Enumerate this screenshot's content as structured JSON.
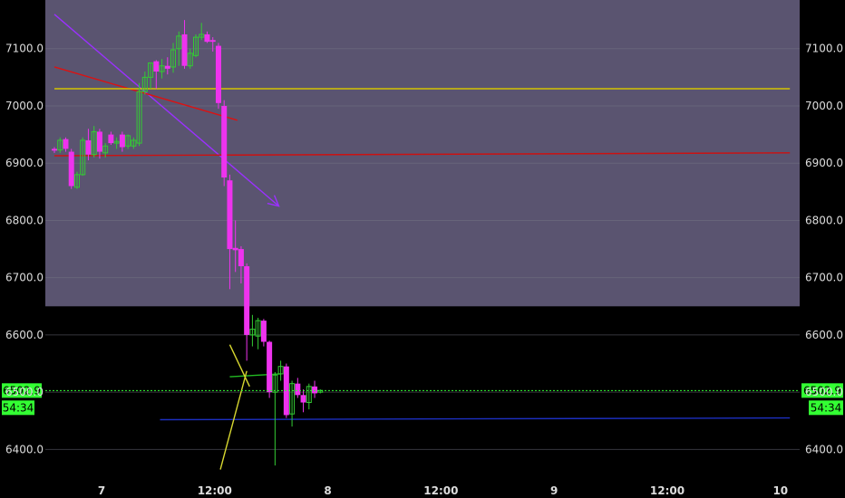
{
  "chart_data": {
    "type": "candlestick",
    "title": "",
    "xlabel": "",
    "ylabel": "",
    "ylim": [
      6350,
      7185
    ],
    "x_ticks": [
      {
        "label": "7",
        "t": 0
      },
      {
        "label": "12:00",
        "t": 12
      },
      {
        "label": "8",
        "t": 24
      },
      {
        "label": "12:00",
        "t": 36
      },
      {
        "label": "9",
        "t": 48
      },
      {
        "label": "12:00",
        "t": 60
      },
      {
        "label": "10",
        "t": 72
      }
    ],
    "y_ticks": [
      "6400.0",
      "6500.0",
      "6600.0",
      "6700.0",
      "6800.0",
      "6900.0",
      "7000.0",
      "7100.0"
    ],
    "candles": [
      {
        "t": -5.0,
        "open": 6925,
        "high": 6928,
        "low": 6918,
        "close": 6922
      },
      {
        "t": -4.4,
        "open": 6923,
        "high": 6945,
        "low": 6918,
        "close": 6940
      },
      {
        "t": -3.8,
        "open": 6942,
        "high": 6945,
        "low": 6920,
        "close": 6925
      },
      {
        "t": -3.2,
        "open": 6920,
        "high": 6925,
        "low": 6855,
        "close": 6860
      },
      {
        "t": -2.6,
        "open": 6858,
        "high": 6885,
        "low": 6855,
        "close": 6880
      },
      {
        "t": -2.0,
        "open": 6880,
        "high": 6945,
        "low": 6878,
        "close": 6940
      },
      {
        "t": -1.4,
        "open": 6940,
        "high": 6960,
        "low": 6905,
        "close": 6915
      },
      {
        "t": -0.8,
        "open": 6915,
        "high": 6965,
        "low": 6910,
        "close": 6955
      },
      {
        "t": -0.2,
        "open": 6955,
        "high": 6960,
        "low": 6908,
        "close": 6920
      },
      {
        "t": 0.4,
        "open": 6918,
        "high": 6935,
        "low": 6910,
        "close": 6930
      },
      {
        "t": 1.0,
        "open": 6950,
        "high": 6955,
        "low": 6932,
        "close": 6935
      },
      {
        "t": 1.6,
        "open": 6935,
        "high": 6945,
        "low": 6925,
        "close": 6938
      },
      {
        "t": 2.2,
        "open": 6950,
        "high": 6955,
        "low": 6920,
        "close": 6928
      },
      {
        "t": 2.8,
        "open": 6930,
        "high": 6950,
        "low": 6925,
        "close": 6948
      },
      {
        "t": 3.4,
        "open": 6930,
        "high": 6945,
        "low": 6925,
        "close": 6940
      },
      {
        "t": 4.0,
        "open": 6935,
        "high": 7040,
        "low": 6930,
        "close": 7025
      },
      {
        "t": 4.6,
        "open": 7025,
        "high": 7060,
        "low": 7020,
        "close": 7050
      },
      {
        "t": 5.2,
        "open": 7050,
        "high": 7075,
        "low": 7030,
        "close": 7075
      },
      {
        "t": 5.8,
        "open": 7078,
        "high": 7080,
        "low": 7030,
        "close": 7060
      },
      {
        "t": 6.4,
        "open": 7060,
        "high": 7082,
        "low": 7048,
        "close": 7070
      },
      {
        "t": 7.0,
        "open": 7070,
        "high": 7085,
        "low": 7055,
        "close": 7065
      },
      {
        "t": 7.6,
        "open": 7068,
        "high": 7110,
        "low": 7058,
        "close": 7098
      },
      {
        "t": 8.2,
        "open": 7100,
        "high": 7130,
        "low": 7070,
        "close": 7122
      },
      {
        "t": 8.8,
        "open": 7125,
        "high": 7150,
        "low": 7065,
        "close": 7070
      },
      {
        "t": 9.4,
        "open": 7070,
        "high": 7100,
        "low": 7065,
        "close": 7092
      },
      {
        "t": 10.0,
        "open": 7088,
        "high": 7125,
        "low": 7085,
        "close": 7120
      },
      {
        "t": 10.6,
        "open": 7120,
        "high": 7145,
        "low": 7115,
        "close": 7125
      },
      {
        "t": 11.2,
        "open": 7125,
        "high": 7130,
        "low": 7110,
        "close": 7112
      },
      {
        "t": 11.8,
        "open": 7115,
        "high": 7120,
        "low": 7095,
        "close": 7112
      },
      {
        "t": 12.4,
        "open": 7105,
        "high": 7110,
        "low": 6995,
        "close": 7005
      },
      {
        "t": 13.0,
        "open": 7000,
        "high": 7010,
        "low": 6860,
        "close": 6875
      },
      {
        "t": 13.6,
        "open": 6870,
        "high": 6880,
        "low": 6680,
        "close": 6750
      },
      {
        "t": 14.2,
        "open": 6752,
        "high": 6800,
        "low": 6710,
        "close": 6748
      },
      {
        "t": 14.8,
        "open": 6750,
        "high": 6755,
        "low": 6690,
        "close": 6720
      },
      {
        "t": 15.4,
        "open": 6720,
        "high": 6725,
        "low": 6555,
        "close": 6600
      },
      {
        "t": 16.0,
        "open": 6600,
        "high": 6635,
        "low": 6580,
        "close": 6610
      },
      {
        "t": 16.6,
        "open": 6598,
        "high": 6630,
        "low": 6575,
        "close": 6625
      },
      {
        "t": 17.2,
        "open": 6625,
        "high": 6628,
        "low": 6580,
        "close": 6588
      },
      {
        "t": 17.8,
        "open": 6588,
        "high": 6590,
        "low": 6490,
        "close": 6500
      },
      {
        "t": 18.4,
        "open": 6500,
        "high": 6535,
        "low": 6372,
        "close": 6530
      },
      {
        "t": 19.0,
        "open": 6532,
        "high": 6555,
        "low": 6520,
        "close": 6545
      },
      {
        "t": 19.6,
        "open": 6545,
        "high": 6550,
        "low": 6455,
        "close": 6460
      },
      {
        "t": 20.2,
        "open": 6462,
        "high": 6520,
        "low": 6440,
        "close": 6515
      },
      {
        "t": 20.8,
        "open": 6515,
        "high": 6525,
        "low": 6490,
        "close": 6495
      },
      {
        "t": 21.4,
        "open": 6495,
        "high": 6505,
        "low": 6465,
        "close": 6482
      },
      {
        "t": 22.0,
        "open": 6482,
        "high": 6515,
        "low": 6470,
        "close": 6510
      },
      {
        "t": 22.6,
        "open": 6510,
        "high": 6520,
        "low": 6490,
        "close": 6498
      },
      {
        "t": 23.2,
        "open": 6500,
        "high": 6505,
        "low": 6498,
        "close": 6503
      }
    ],
    "trend_lines": [
      {
        "name": "purple-trend-line",
        "color": "#9b30ff",
        "points": [
          [
            -5.0,
            7160
          ],
          [
            18.8,
            6825
          ]
        ],
        "arrow": true
      },
      {
        "name": "red-trend-line",
        "color": "#dd1111",
        "points": [
          [
            -5.0,
            7068
          ],
          [
            14.4,
            6975
          ]
        ]
      },
      {
        "name": "yellow-horizontal-line",
        "color": "#d4c400",
        "points": [
          [
            -5.0,
            7030
          ],
          [
            73.0,
            7030
          ]
        ]
      },
      {
        "name": "red-horizontal-line",
        "color": "#cc1111",
        "points": [
          [
            -5.0,
            6913
          ],
          [
            73.0,
            6918
          ]
        ]
      },
      {
        "name": "green-horizontal-line",
        "color": "#22bb22",
        "points": [
          [
            13.6,
            6527
          ],
          [
            19.0,
            6532
          ]
        ]
      },
      {
        "name": "blue-horizontal-line",
        "color": "#1c2fc0",
        "points": [
          [
            6.2,
            6452
          ],
          [
            73.0,
            6455
          ]
        ]
      },
      {
        "name": "triangle-upper-line",
        "color": "#d8d830",
        "points": [
          [
            13.6,
            6583
          ],
          [
            15.7,
            6510
          ]
        ]
      },
      {
        "name": "triangle-lower-line",
        "color": "#d8d830",
        "points": [
          [
            12.6,
            6365
          ],
          [
            15.4,
            6537
          ]
        ]
      }
    ],
    "shaded_region": {
      "from": 6650,
      "to": 7185,
      "color": "#5a5470"
    },
    "current_price": {
      "label": "6502.9",
      "value": 6502.9,
      "countdown": "54:34",
      "color": "#33ff33"
    },
    "colors": {
      "up": "#33cc33",
      "down": "#ee33ee",
      "background": "#000000",
      "text": "#dddddd",
      "grid": "#333333"
    }
  }
}
